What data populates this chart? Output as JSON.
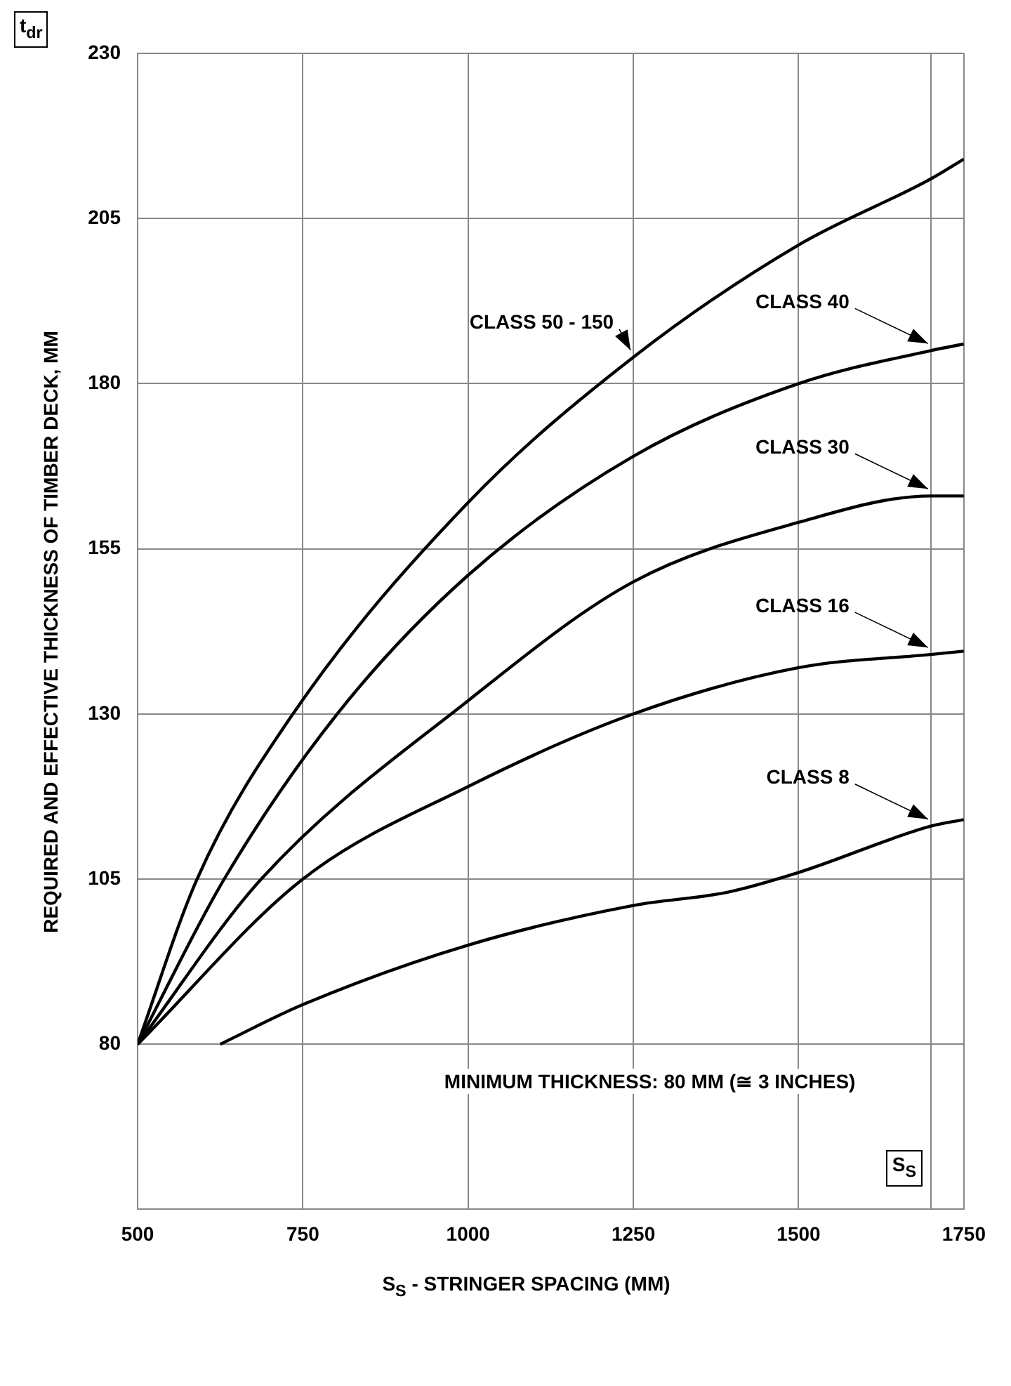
{
  "chart_data": {
    "type": "line",
    "xlabel": "S$_{S}$ - STRINGER SPACING (MM)",
    "ylabel": "REQUIRED AND EFFECTIVE THICKNESS OF TIMBER DECK, MM",
    "annotations": [
      "MINIMUM THICKNESS: 80 MM (≅ 3 INCHES)",
      "t$_{dr}$",
      "S$_{S}$"
    ],
    "xlim": [
      500,
      1750
    ],
    "xticks": [
      500,
      750,
      1000,
      1250,
      1500,
      {
        "value": 1700,
        "label": null
      },
      1750
    ],
    "ylim": [
      55,
      230
    ],
    "yticks": [
      80,
      105,
      130,
      155,
      180,
      205,
      230
    ],
    "grid": true,
    "legend": false,
    "marker": "none",
    "line_style": "solid",
    "series": [
      {
        "name": "CLASS 50 - 150",
        "color": "#000000",
        "x": [
          500,
          590,
          735,
          1000,
          1250,
          1500,
          1700,
          1750
        ],
        "values": [
          80,
          105,
          130,
          162,
          184,
          201,
          211,
          214
        ]
      },
      {
        "name": "CLASS 40",
        "color": "#000000",
        "x": [
          500,
          631,
          802,
          1000,
          1250,
          1500,
          1700,
          1750
        ],
        "values": [
          80,
          105,
          130,
          151,
          169,
          180,
          185,
          186
        ]
      },
      {
        "name": "CLASS 30",
        "color": "#000000",
        "x": [
          500,
          687,
          1000,
          1250,
          1500,
          1700,
          1750
        ],
        "values": [
          80,
          105,
          132,
          150,
          159,
          163,
          163
        ]
      },
      {
        "name": "CLASS 16",
        "color": "#000000",
        "x": [
          500,
          750,
          1000,
          1250,
          1500,
          1700,
          1750
        ],
        "values": [
          80,
          105,
          119,
          130,
          137,
          139,
          139.5
        ]
      },
      {
        "name": "CLASS 8",
        "color": "#000000",
        "x": [
          625,
          750,
          1000,
          1250,
          1392,
          1500,
          1700,
          1750
        ],
        "values": [
          80,
          86,
          95,
          101,
          103,
          106,
          113,
          114
        ]
      }
    ]
  }
}
